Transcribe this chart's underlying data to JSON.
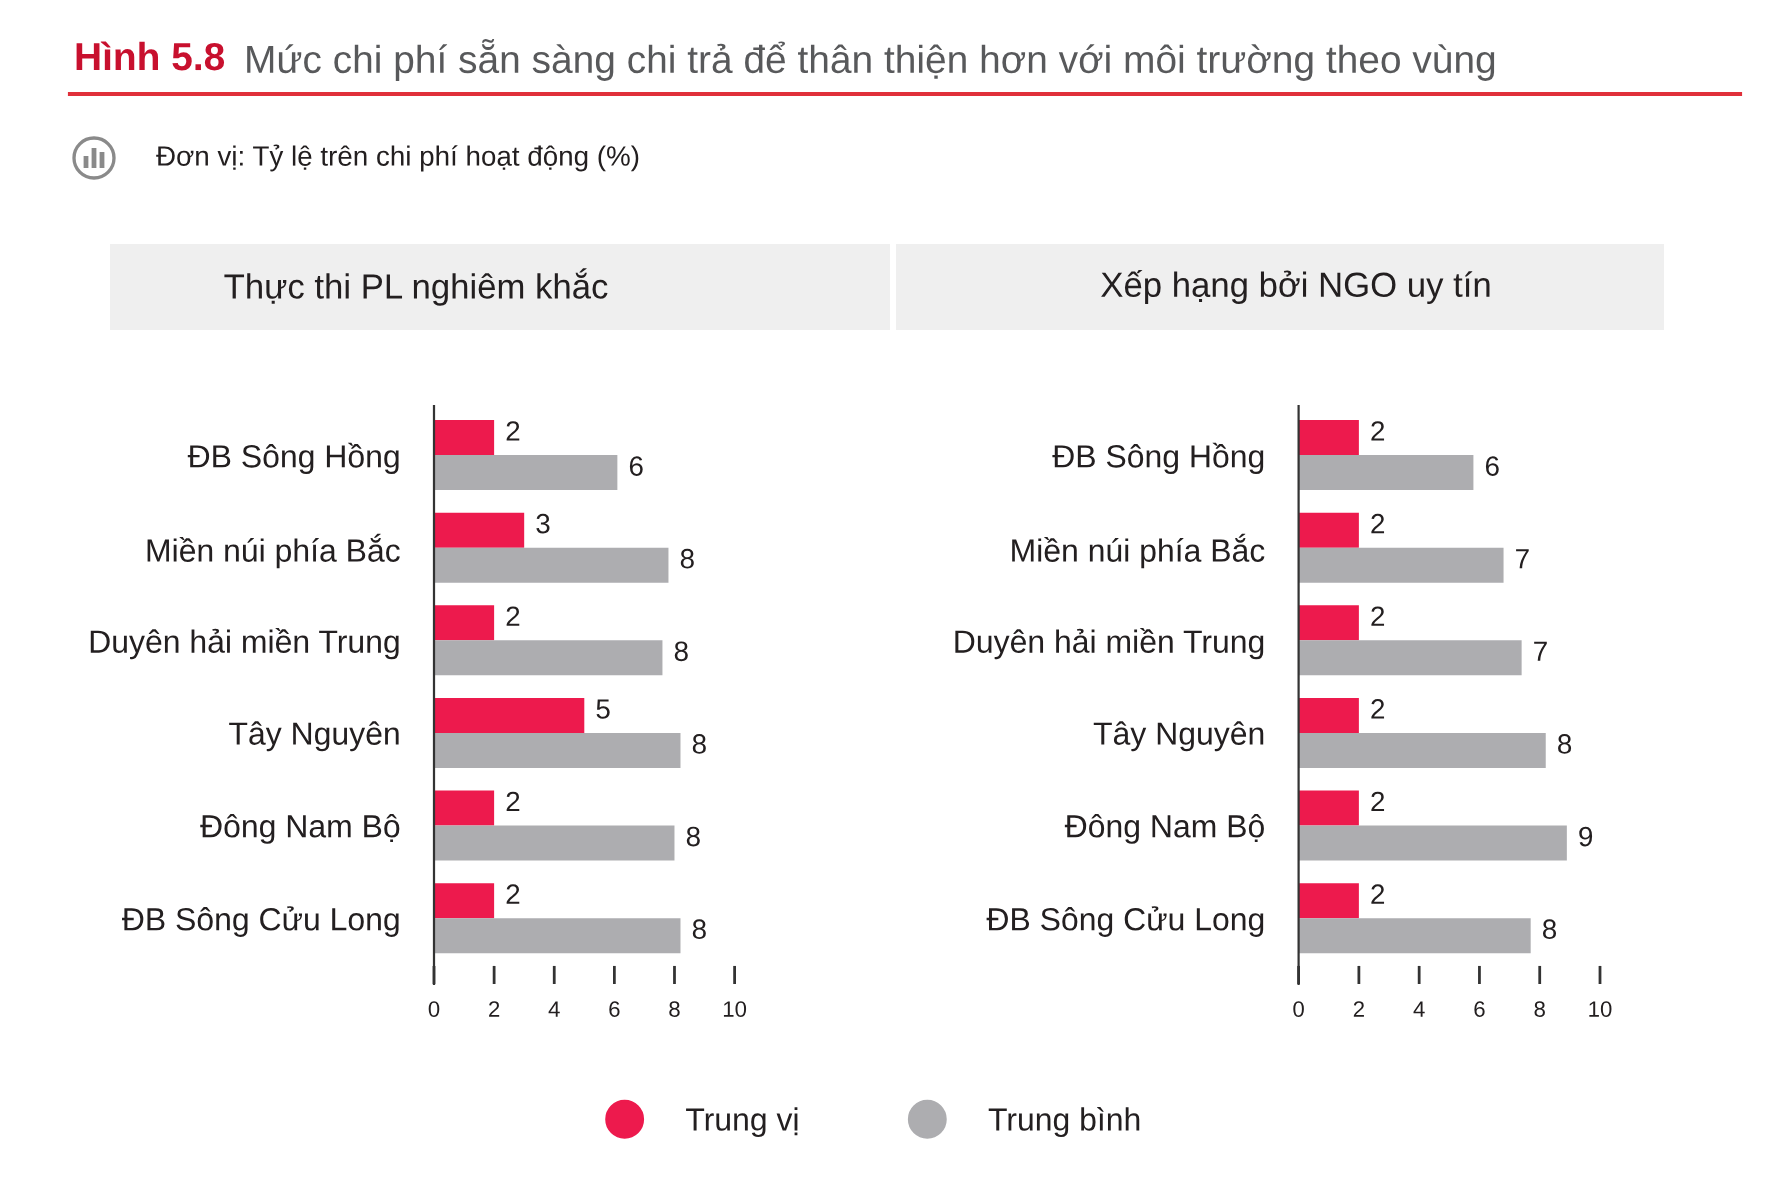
{
  "chart_data": [
    {
      "type": "bar",
      "orientation": "horizontal",
      "title": "Thực thi PL nghiêm khắc",
      "annotations": [
        "Hình 5.8",
        "Mức chi phí sẵn sàng chi trả để thân thiện hơn với môi trường theo vùng",
        "Đơn vị: Tỷ lệ trên chi phí hoạt động (%)"
      ],
      "categories": [
        "ĐB Sông Hồng",
        "Miền núi phía Bắc",
        "Duyên hải miền Trung",
        "Tây Nguyên",
        "Đông Nam Bộ",
        "ĐB Sông Cửu Long"
      ],
      "series": [
        {
          "name": "Trung vị",
          "color": "#ed1a4d",
          "values": [
            2,
            3,
            2,
            5,
            2,
            2
          ],
          "value_labels": [
            "2",
            "3",
            "2",
            "5",
            "2",
            "2"
          ]
        },
        {
          "name": "Trung bình",
          "color": "#adadb0",
          "values": [
            6.1,
            7.8,
            7.6,
            8.2,
            8.0,
            8.2
          ],
          "value_labels": [
            "6",
            "8",
            "8",
            "8",
            "8",
            "8"
          ]
        }
      ],
      "xlim": [
        0,
        10
      ],
      "xticks": [
        0,
        2,
        4,
        6,
        8,
        10
      ],
      "legend": "bottom"
    },
    {
      "type": "bar",
      "orientation": "horizontal",
      "title": "Xếp hạng bởi NGO uy tín",
      "categories": [
        "ĐB Sông Hồng",
        "Miền núi phía Bắc",
        "Duyên hải miền Trung",
        "Tây Nguyên",
        "Đông Nam Bộ",
        "ĐB Sông Cửu Long"
      ],
      "series": [
        {
          "name": "Trung vị",
          "color": "#ed1a4d",
          "values": [
            2,
            2,
            2,
            2,
            2,
            2
          ],
          "value_labels": [
            "2",
            "2",
            "2",
            "2",
            "2",
            "2"
          ]
        },
        {
          "name": "Trung bình",
          "color": "#adadb0",
          "values": [
            5.8,
            6.8,
            7.4,
            8.2,
            8.9,
            7.7
          ],
          "value_labels": [
            "6",
            "7",
            "7",
            "8",
            "9",
            "8"
          ]
        }
      ],
      "xlim": [
        0,
        10
      ],
      "xticks": [
        0,
        2,
        4,
        6,
        8,
        10
      ],
      "legend": "bottom"
    }
  ]
}
